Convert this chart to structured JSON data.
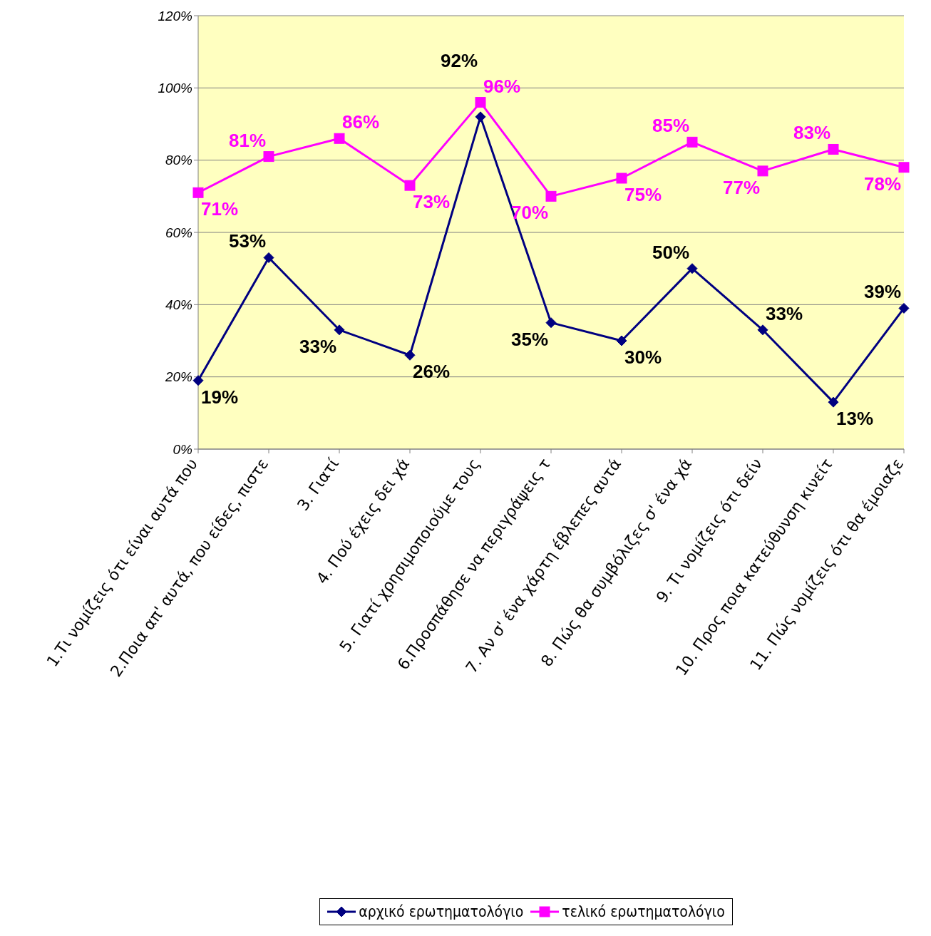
{
  "chart_data": {
    "type": "line",
    "categories": [
      "1.Τι νομίζεις ότι είναι αυτά που",
      "2.Ποια απ' αυτά, που είδες, πιστε",
      "3. Γιατί",
      "4. Πού έχεις δει χά",
      "5. Γιατί χρησιμοποιούμε τους",
      "6.Προσπάθησε να περιγράψεις τ",
      "7. Αν σ' ένα χάρτη έβλεπες αυτά",
      "8. Πώς θα συμβόλιζες σ' ένα χά",
      "9. Τι νομίζεις ότι δείν",
      "10. Προς ποια κατεύθυνση κινείτ",
      "11. Πώς νομίζεις ότι θα έμοιαζε"
    ],
    "series": [
      {
        "name": "αρχικό ερωτηματολόγιο",
        "color": "#000080",
        "marker": "diamond",
        "values": [
          19,
          53,
          33,
          26,
          92,
          35,
          30,
          50,
          33,
          13,
          39
        ],
        "value_labels": [
          "19%",
          "53%",
          "33%",
          "26%",
          "92%",
          "35%",
          "30%",
          "50%",
          "33%",
          "13%",
          "39%"
        ]
      },
      {
        "name": "τελικό ερωτηματολόγιο",
        "color": "#ff00ff",
        "marker": "square",
        "values": [
          71,
          81,
          86,
          73,
          96,
          70,
          75,
          85,
          77,
          83,
          78
        ],
        "value_labels": [
          "71%",
          "81%",
          "86%",
          "73%",
          "96%",
          "70%",
          "75%",
          "85%",
          "77%",
          "83%",
          "78%"
        ]
      }
    ],
    "ylim": [
      0,
      120
    ],
    "yticks": [
      {
        "value": 0,
        "label": "0%"
      },
      {
        "value": 20,
        "label": "20%"
      },
      {
        "value": 40,
        "label": "40%"
      },
      {
        "value": 60,
        "label": "60%"
      },
      {
        "value": 80,
        "label": "80%"
      },
      {
        "value": 100,
        "label": "100%"
      },
      {
        "value": 120,
        "label": "120%"
      }
    ],
    "grid": "y",
    "legend": "bottom"
  }
}
